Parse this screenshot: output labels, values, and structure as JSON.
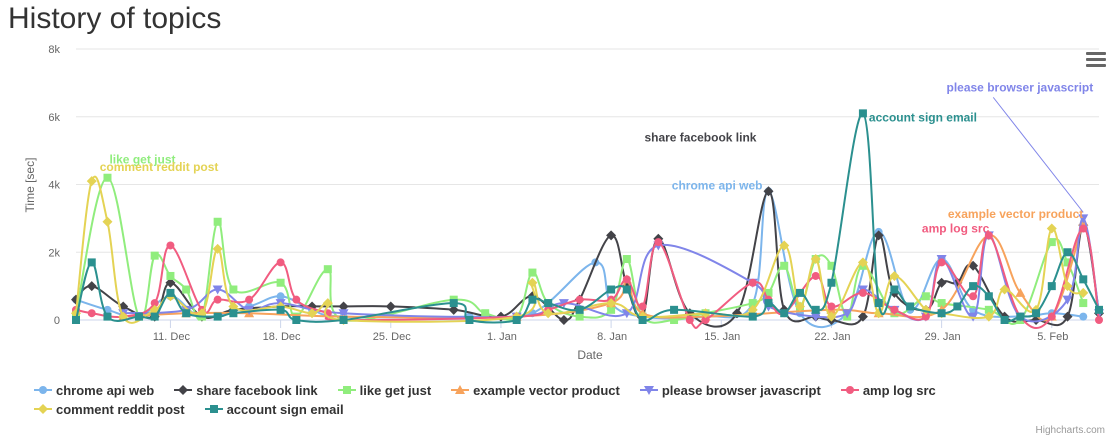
{
  "chart_data": {
    "type": "line",
    "title": "History of topics",
    "xlabel": "Date",
    "ylabel": "Time [sec]",
    "ylim": [
      0,
      8000
    ],
    "y_ticks": [
      "0",
      "2k",
      "4k",
      "6k",
      "8k"
    ],
    "y_tick_values": [
      0,
      2000,
      4000,
      6000,
      8000
    ],
    "x_range": [
      "2017-12-05",
      "2018-02-08"
    ],
    "x_ticks": [
      {
        "label": "11. Dec",
        "date": "2017-12-11"
      },
      {
        "label": "18. Dec",
        "date": "2017-12-18"
      },
      {
        "label": "25. Dec",
        "date": "2017-12-25"
      },
      {
        "label": "1. Jan",
        "date": "2018-01-01"
      },
      {
        "label": "8. Jan",
        "date": "2018-01-08"
      },
      {
        "label": "15. Jan",
        "date": "2018-01-15"
      },
      {
        "label": "22. Jan",
        "date": "2018-01-22"
      },
      {
        "label": "29. Jan",
        "date": "2018-01-29"
      },
      {
        "label": "5. Feb",
        "date": "2018-02-05"
      }
    ],
    "legend_position": "bottom",
    "grid": true,
    "series": [
      {
        "name": "chrome api web",
        "color": "#7cb5ec",
        "marker": "circle",
        "annotation": "chrome api web",
        "points": [
          [
            "2017-12-05",
            600
          ],
          [
            "2017-12-07",
            300
          ],
          [
            "2017-12-09",
            100
          ],
          [
            "2017-12-11",
            700
          ],
          [
            "2017-12-13",
            100
          ],
          [
            "2017-12-16",
            400
          ],
          [
            "2017-12-18",
            700
          ],
          [
            "2017-12-20",
            300
          ],
          [
            "2017-12-22",
            100
          ],
          [
            "2017-12-30",
            100
          ],
          [
            "2018-01-03",
            200
          ],
          [
            "2018-01-07",
            1700
          ],
          [
            "2018-01-08",
            500
          ],
          [
            "2018-01-10",
            100
          ],
          [
            "2018-01-14",
            100
          ],
          [
            "2018-01-17",
            500
          ],
          [
            "2018-01-18",
            3800
          ],
          [
            "2018-01-20",
            200
          ],
          [
            "2018-01-23",
            200
          ],
          [
            "2018-01-25",
            2600
          ],
          [
            "2018-01-27",
            300
          ],
          [
            "2018-01-29",
            1800
          ],
          [
            "2018-01-31",
            300
          ],
          [
            "2018-02-03",
            100
          ],
          [
            "2018-02-05",
            200
          ],
          [
            "2018-02-07",
            100
          ]
        ]
      },
      {
        "name": "share facebook link",
        "color": "#434348",
        "marker": "diamond",
        "annotation": "share facebook link",
        "points": [
          [
            "2017-12-05",
            600
          ],
          [
            "2017-12-06",
            1000
          ],
          [
            "2017-12-08",
            400
          ],
          [
            "2017-12-10",
            100
          ],
          [
            "2017-12-11",
            1100
          ],
          [
            "2017-12-13",
            100
          ],
          [
            "2017-12-15",
            300
          ],
          [
            "2017-12-18",
            400
          ],
          [
            "2017-12-20",
            400
          ],
          [
            "2017-12-22",
            400
          ],
          [
            "2017-12-25",
            400
          ],
          [
            "2017-12-29",
            300
          ],
          [
            "2018-01-01",
            100
          ],
          [
            "2018-01-03",
            700
          ],
          [
            "2018-01-05",
            0
          ],
          [
            "2018-01-06",
            600
          ],
          [
            "2018-01-08",
            2500
          ],
          [
            "2018-01-09",
            1000
          ],
          [
            "2018-01-10",
            100
          ],
          [
            "2018-01-11",
            2400
          ],
          [
            "2018-01-13",
            200
          ],
          [
            "2018-01-16",
            200
          ],
          [
            "2018-01-18",
            3800
          ],
          [
            "2018-01-19",
            300
          ],
          [
            "2018-01-21",
            100
          ],
          [
            "2018-01-22",
            0
          ],
          [
            "2018-01-24",
            100
          ],
          [
            "2018-01-25",
            2500
          ],
          [
            "2018-01-26",
            800
          ],
          [
            "2018-01-28",
            300
          ],
          [
            "2018-01-29",
            1100
          ],
          [
            "2018-01-30",
            1100
          ],
          [
            "2018-01-31",
            1600
          ],
          [
            "2018-02-02",
            100
          ],
          [
            "2018-02-04",
            0
          ],
          [
            "2018-02-06",
            100
          ],
          [
            "2018-02-07",
            2800
          ],
          [
            "2018-02-08",
            200
          ]
        ]
      },
      {
        "name": "like get just",
        "color": "#90ed7d",
        "marker": "square",
        "annotation": "like get just",
        "points": [
          [
            "2017-12-05",
            200
          ],
          [
            "2017-12-07",
            4200
          ],
          [
            "2017-12-09",
            100
          ],
          [
            "2017-12-10",
            1900
          ],
          [
            "2017-12-11",
            1300
          ],
          [
            "2017-12-12",
            900
          ],
          [
            "2017-12-13",
            100
          ],
          [
            "2017-12-14",
            2900
          ],
          [
            "2017-12-15",
            900
          ],
          [
            "2017-12-18",
            1100
          ],
          [
            "2017-12-19",
            100
          ],
          [
            "2017-12-21",
            1500
          ],
          [
            "2017-12-22",
            0
          ],
          [
            "2017-12-29",
            600
          ],
          [
            "2017-12-31",
            200
          ],
          [
            "2018-01-02",
            100
          ],
          [
            "2018-01-03",
            1400
          ],
          [
            "2018-01-04",
            500
          ],
          [
            "2018-01-06",
            100
          ],
          [
            "2018-01-08",
            300
          ],
          [
            "2018-01-09",
            1800
          ],
          [
            "2018-01-10",
            100
          ],
          [
            "2018-01-12",
            0
          ],
          [
            "2018-01-14",
            200
          ],
          [
            "2018-01-17",
            500
          ],
          [
            "2018-01-18",
            800
          ],
          [
            "2018-01-19",
            1600
          ],
          [
            "2018-01-20",
            400
          ],
          [
            "2018-01-21",
            1800
          ],
          [
            "2018-01-22",
            1600
          ],
          [
            "2018-01-23",
            100
          ],
          [
            "2018-01-24",
            1600
          ],
          [
            "2018-01-26",
            200
          ],
          [
            "2018-01-28",
            700
          ],
          [
            "2018-01-29",
            500
          ],
          [
            "2018-02-01",
            300
          ],
          [
            "2018-02-03",
            0
          ],
          [
            "2018-02-05",
            2300
          ],
          [
            "2018-02-06",
            1700
          ],
          [
            "2018-02-07",
            500
          ]
        ]
      },
      {
        "name": "example vector product",
        "color": "#f7a35c",
        "marker": "triangle",
        "annotation": "example vector product",
        "points": [
          [
            "2017-12-08",
            100
          ],
          [
            "2017-12-12",
            200
          ],
          [
            "2017-12-16",
            200
          ],
          [
            "2017-12-22",
            100
          ],
          [
            "2018-01-02",
            100
          ],
          [
            "2018-01-08",
            500
          ],
          [
            "2018-01-09",
            1200
          ],
          [
            "2018-01-10",
            200
          ],
          [
            "2018-01-14",
            100
          ],
          [
            "2018-01-22",
            300
          ],
          [
            "2018-01-25",
            200
          ],
          [
            "2018-01-29",
            300
          ],
          [
            "2018-02-01",
            2500
          ],
          [
            "2018-02-03",
            800
          ],
          [
            "2018-02-05",
            100
          ],
          [
            "2018-02-07",
            2900
          ]
        ]
      },
      {
        "name": "please browser javascript",
        "color": "#8085e9",
        "marker": "triangle-down",
        "annotation": "please browser javascript",
        "points": [
          [
            "2017-12-08",
            200
          ],
          [
            "2017-12-12",
            300
          ],
          [
            "2017-12-14",
            900
          ],
          [
            "2017-12-16",
            300
          ],
          [
            "2017-12-18",
            500
          ],
          [
            "2017-12-22",
            200
          ],
          [
            "2018-01-02",
            100
          ],
          [
            "2018-01-05",
            500
          ],
          [
            "2018-01-09",
            200
          ],
          [
            "2018-01-11",
            2200
          ],
          [
            "2018-01-17",
            1100
          ],
          [
            "2018-01-18",
            400
          ],
          [
            "2018-01-21",
            100
          ],
          [
            "2018-01-23",
            200
          ],
          [
            "2018-01-24",
            900
          ],
          [
            "2018-01-26",
            300
          ],
          [
            "2018-01-28",
            100
          ],
          [
            "2018-01-29",
            1800
          ],
          [
            "2018-01-31",
            100
          ],
          [
            "2018-02-01",
            2500
          ],
          [
            "2018-02-03",
            100
          ],
          [
            "2018-02-06",
            600
          ],
          [
            "2018-02-07",
            3000
          ],
          [
            "2018-02-08",
            200
          ]
        ]
      },
      {
        "name": "amp log src",
        "color": "#f15c80",
        "marker": "circle",
        "annotation": "amp log src",
        "points": [
          [
            "2017-12-05",
            300
          ],
          [
            "2017-12-06",
            200
          ],
          [
            "2017-12-08",
            100
          ],
          [
            "2017-12-10",
            500
          ],
          [
            "2017-12-11",
            2200
          ],
          [
            "2017-12-13",
            300
          ],
          [
            "2017-12-14",
            600
          ],
          [
            "2017-12-16",
            600
          ],
          [
            "2017-12-18",
            1700
          ],
          [
            "2017-12-19",
            600
          ],
          [
            "2017-12-21",
            200
          ],
          [
            "2017-12-22",
            0
          ],
          [
            "2018-01-02",
            100
          ],
          [
            "2018-01-04",
            300
          ],
          [
            "2018-01-06",
            600
          ],
          [
            "2018-01-08",
            600
          ],
          [
            "2018-01-09",
            1200
          ],
          [
            "2018-01-10",
            400
          ],
          [
            "2018-01-11",
            2300
          ],
          [
            "2018-01-13",
            0
          ],
          [
            "2018-01-14",
            0
          ],
          [
            "2018-01-17",
            1100
          ],
          [
            "2018-01-18",
            600
          ],
          [
            "2018-01-19",
            200
          ],
          [
            "2018-01-21",
            1300
          ],
          [
            "2018-01-22",
            400
          ],
          [
            "2018-01-24",
            800
          ],
          [
            "2018-01-26",
            300
          ],
          [
            "2018-01-28",
            100
          ],
          [
            "2018-01-29",
            1700
          ],
          [
            "2018-01-31",
            700
          ],
          [
            "2018-02-01",
            2500
          ],
          [
            "2018-02-03",
            100
          ],
          [
            "2018-02-05",
            100
          ],
          [
            "2018-02-07",
            2700
          ],
          [
            "2018-02-08",
            0
          ]
        ]
      },
      {
        "name": "comment reddit post",
        "color": "#e4d354",
        "marker": "diamond",
        "annotation": "comment reddit post",
        "points": [
          [
            "2017-12-05",
            200
          ],
          [
            "2017-12-06",
            4100
          ],
          [
            "2017-12-07",
            2900
          ],
          [
            "2017-12-08",
            100
          ],
          [
            "2017-12-10",
            300
          ],
          [
            "2017-12-11",
            700
          ],
          [
            "2017-12-13",
            200
          ],
          [
            "2017-12-14",
            2100
          ],
          [
            "2017-12-15",
            400
          ],
          [
            "2017-12-18",
            400
          ],
          [
            "2017-12-20",
            200
          ],
          [
            "2017-12-21",
            500
          ],
          [
            "2017-12-22",
            0
          ],
          [
            "2018-01-02",
            100
          ],
          [
            "2018-01-03",
            1100
          ],
          [
            "2018-01-04",
            200
          ],
          [
            "2018-01-08",
            500
          ],
          [
            "2018-01-10",
            100
          ],
          [
            "2018-01-14",
            200
          ],
          [
            "2018-01-17",
            300
          ],
          [
            "2018-01-19",
            2200
          ],
          [
            "2018-01-20",
            400
          ],
          [
            "2018-01-21",
            1800
          ],
          [
            "2018-01-22",
            100
          ],
          [
            "2018-01-24",
            1700
          ],
          [
            "2018-01-25",
            200
          ],
          [
            "2018-01-26",
            1300
          ],
          [
            "2018-01-28",
            300
          ],
          [
            "2018-01-29",
            200
          ],
          [
            "2018-02-01",
            100
          ],
          [
            "2018-02-02",
            900
          ],
          [
            "2018-02-04",
            300
          ],
          [
            "2018-02-05",
            2700
          ],
          [
            "2018-02-06",
            1000
          ],
          [
            "2018-02-07",
            800
          ]
        ]
      },
      {
        "name": "account sign email",
        "color": "#2b908f",
        "marker": "square",
        "annotation": "account sign email",
        "points": [
          [
            "2017-12-05",
            0
          ],
          [
            "2017-12-06",
            1700
          ],
          [
            "2017-12-07",
            100
          ],
          [
            "2017-12-09",
            100
          ],
          [
            "2017-12-10",
            100
          ],
          [
            "2017-12-11",
            800
          ],
          [
            "2017-12-12",
            200
          ],
          [
            "2017-12-14",
            100
          ],
          [
            "2017-12-15",
            200
          ],
          [
            "2017-12-18",
            300
          ],
          [
            "2017-12-19",
            0
          ],
          [
            "2017-12-22",
            0
          ],
          [
            "2017-12-29",
            500
          ],
          [
            "2017-12-30",
            0
          ],
          [
            "2018-01-02",
            0
          ],
          [
            "2018-01-03",
            600
          ],
          [
            "2018-01-04",
            500
          ],
          [
            "2018-01-06",
            300
          ],
          [
            "2018-01-08",
            900
          ],
          [
            "2018-01-09",
            900
          ],
          [
            "2018-01-10",
            0
          ],
          [
            "2018-01-12",
            300
          ],
          [
            "2018-01-17",
            100
          ],
          [
            "2018-01-18",
            500
          ],
          [
            "2018-01-19",
            200
          ],
          [
            "2018-01-20",
            800
          ],
          [
            "2018-01-21",
            300
          ],
          [
            "2018-01-22",
            1100
          ],
          [
            "2018-01-24",
            6100
          ],
          [
            "2018-01-25",
            500
          ],
          [
            "2018-01-26",
            900
          ],
          [
            "2018-01-27",
            400
          ],
          [
            "2018-01-29",
            200
          ],
          [
            "2018-01-30",
            400
          ],
          [
            "2018-01-31",
            1000
          ],
          [
            "2018-02-01",
            700
          ],
          [
            "2018-02-02",
            0
          ],
          [
            "2018-02-03",
            100
          ],
          [
            "2018-02-04",
            200
          ],
          [
            "2018-02-05",
            1000
          ],
          [
            "2018-02-06",
            2000
          ],
          [
            "2018-02-07",
            1200
          ],
          [
            "2018-02-08",
            300
          ]
        ]
      }
    ]
  },
  "credits": "Highcharts.com"
}
